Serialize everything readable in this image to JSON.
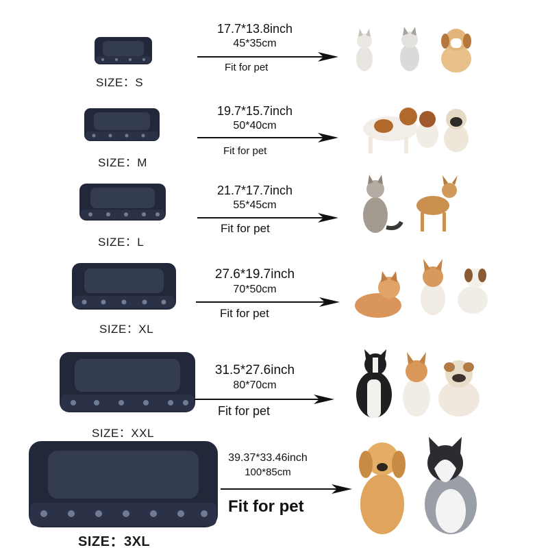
{
  "rows": [
    {
      "size_label": "SIZE：S",
      "inch": "17.7*13.8inch",
      "cm": "45*35cm",
      "fit": "Fit for pet",
      "pets": [
        "kitten-icon",
        "kitten-icon",
        "puppy-icon"
      ]
    },
    {
      "size_label": "SIZE：M",
      "inch": "19.7*15.7inch",
      "cm": "50*40cm",
      "fit": "Fit for pet",
      "pets": [
        "dog-icon",
        "dog-icon",
        "pug-icon"
      ]
    },
    {
      "size_label": "SIZE：L",
      "inch": "21.7*17.7inch",
      "cm": "55*45cm",
      "fit": "Fit for pet",
      "pets": [
        "cat-icon",
        "chihuahua-icon"
      ]
    },
    {
      "size_label": "SIZE：XL",
      "inch": "27.6*19.7inch",
      "cm": "70*50cm",
      "fit": "Fit for pet",
      "pets": [
        "cat-icon",
        "corgi-icon",
        "dog-icon"
      ]
    },
    {
      "size_label": "SIZE：XXL",
      "inch": "31.5*27.6inch",
      "cm": "80*70cm",
      "fit": "Fit for pet",
      "pets": [
        "border-collie-icon",
        "corgi-icon",
        "bulldog-icon"
      ]
    },
    {
      "size_label": "SIZE：3XL",
      "inch": "39.37*33.46inch",
      "cm": "100*85cm",
      "fit": "Fit for pet",
      "pets": [
        "golden-retriever-icon",
        "husky-icon"
      ]
    }
  ],
  "colors": {
    "bed": "#22283a",
    "bed_plush": "#343c52",
    "bed_print": "#6f7c94",
    "arrow": "#111111"
  }
}
